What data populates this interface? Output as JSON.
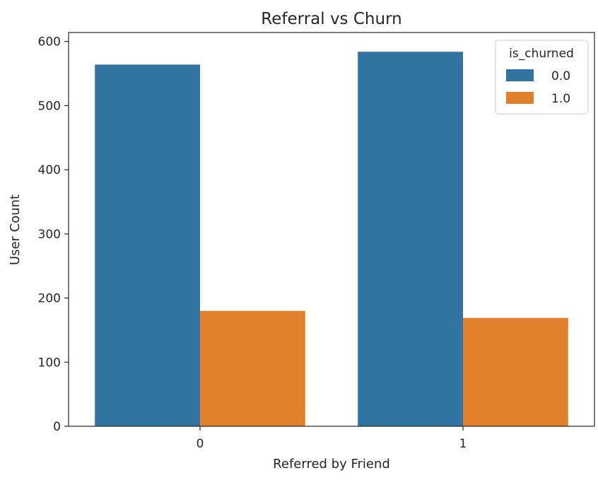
{
  "chart_data": {
    "type": "bar",
    "title": "Referral vs Churn",
    "xlabel": "Referred by Friend",
    "ylabel": "User Count",
    "categories": [
      "0",
      "1"
    ],
    "ylim": [
      0,
      614
    ],
    "yticks": [
      0,
      100,
      200,
      300,
      400,
      500,
      600
    ],
    "series": [
      {
        "name": "0.0",
        "values": [
          564,
          584
        ],
        "color": "#3274a1"
      },
      {
        "name": "1.0",
        "values": [
          180,
          169
        ],
        "color": "#e1812c"
      }
    ],
    "legend": {
      "title": "is_churned",
      "placement": "top-right"
    },
    "grid": false
  }
}
